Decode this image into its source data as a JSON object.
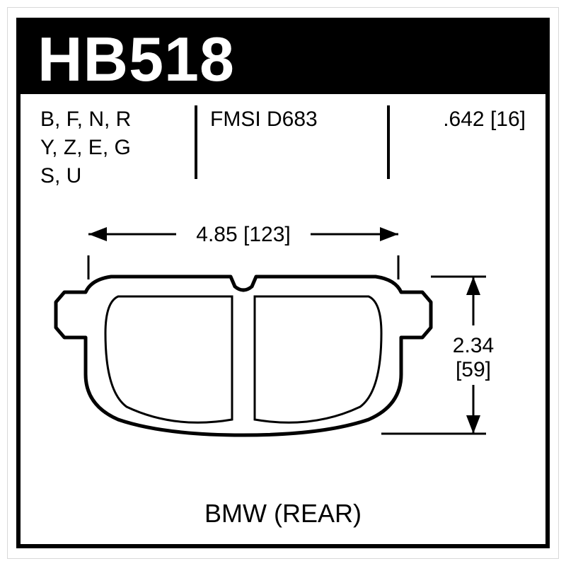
{
  "header": {
    "part_number": "HB518"
  },
  "specs": {
    "codes_line1": "B, F, N, R",
    "codes_line2": "Y, Z, E, G",
    "codes_line3": "S, U",
    "fmsi": "FMSI D683",
    "thickness_in": ".642",
    "thickness_mm": "[16]"
  },
  "dimensions": {
    "width_in": "4.85",
    "width_mm": "[123]",
    "height_in": "2.34",
    "height_mm": "[59]"
  },
  "footer": {
    "application": "BMW (REAR)"
  },
  "style": {
    "stroke_color": "#000000",
    "stroke_width": 5,
    "thin_stroke_width": 3,
    "dim_font_size": 30,
    "bg_color": "#ffffff",
    "title_bg": "#000000",
    "title_fg": "#ffffff"
  }
}
